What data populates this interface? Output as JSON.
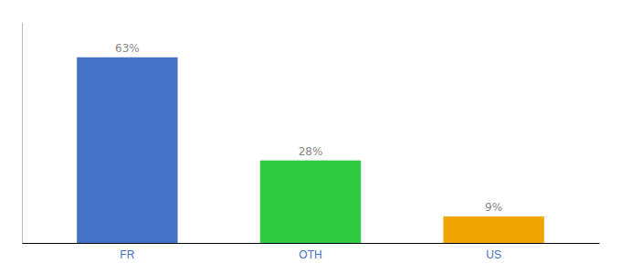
{
  "chart_data": {
    "type": "bar",
    "categories": [
      "FR",
      "OTH",
      "US"
    ],
    "values": [
      63,
      28,
      9
    ],
    "value_labels": [
      "63%",
      "28%",
      "9%"
    ],
    "data_labels": true,
    "colors": [
      "#4472c4",
      "#2ecc40",
      "#f0a500"
    ],
    "ylim": [
      0,
      75
    ],
    "tick_labels": "x"
  }
}
